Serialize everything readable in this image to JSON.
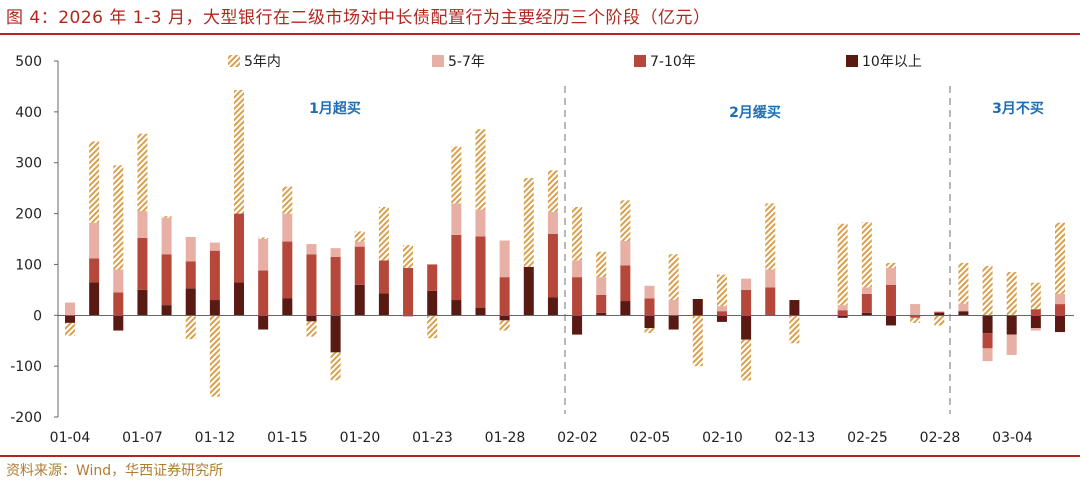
{
  "title": "图 4：2026 年 1-3 月，大型银行在二级市场对中长债配置行为主要经历三个阶段（亿元）",
  "source": "资料来源：Wind，华西证券研究所",
  "colors": {
    "title": "#b3261e",
    "source": "#b07c35",
    "series_5y": "#d9a04e",
    "series_5_7": "#e8afa5",
    "series_7_10": "#b5483a",
    "series_10plus": "#5a1a14",
    "phase_text": "#1f6eb3",
    "divider": "#b8b8b8",
    "axis": "#333333"
  },
  "chart_data": {
    "type": "bar",
    "stacked": true,
    "ylim": [
      -200,
      500
    ],
    "yticks": [
      "500",
      "400",
      "300",
      "200",
      "100",
      "0",
      "-100",
      "-200"
    ],
    "xlabels": [
      "01-04",
      "01-07",
      "01-12",
      "01-15",
      "01-20",
      "01-23",
      "01-28",
      "02-02",
      "02-05",
      "02-10",
      "02-13",
      "02-25",
      "02-28",
      "03-04"
    ],
    "series": [
      {
        "name": "5年内",
        "pattern": "hatch"
      },
      {
        "name": "5-7年",
        "pattern": "solid"
      },
      {
        "name": "7-10年",
        "pattern": "solid"
      },
      {
        "name": "10年以上",
        "pattern": "solid"
      }
    ],
    "bars": [
      {
        "s10": -15,
        "s7_10": 0,
        "s5_7": 25,
        "s5": -25
      },
      {
        "s10": 65,
        "s7_10": 47,
        "s5_7": 70,
        "s5": 160
      },
      {
        "s10": -30,
        "s7_10": 45,
        "s5_7": 45,
        "s5": 205
      },
      {
        "s10": 50,
        "s7_10": 102,
        "s5_7": 53,
        "s5": 152
      },
      {
        "s10": 20,
        "s7_10": 100,
        "s5_7": 72,
        "s5": 3
      },
      {
        "s10": 53,
        "s7_10": 53,
        "s5_7": 48,
        "s5": -47
      },
      {
        "s10": 30,
        "s7_10": 97,
        "s5_7": 16,
        "s5": -160
      },
      {
        "s10": 65,
        "s7_10": 135,
        "s5_7": 0,
        "s5": 243
      },
      {
        "s10": -28,
        "s7_10": 88,
        "s5_7": 62,
        "s5": 3
      },
      {
        "s10": 33,
        "s7_10": 112,
        "s5_7": 55,
        "s5": 53
      },
      {
        "s10": -12,
        "s7_10": 120,
        "s5_7": 20,
        "s5": -30
      },
      {
        "s10": -73,
        "s7_10": 115,
        "s5_7": 17,
        "s5": -55
      },
      {
        "s10": 60,
        "s7_10": 75,
        "s5_7": 10,
        "s5": 20
      },
      {
        "s10": 43,
        "s7_10": 65,
        "s5_7": 0,
        "s5": 105
      },
      {
        "s10": -2,
        "s7_10": 93,
        "s5_7": 0,
        "s5": 45
      },
      {
        "s10": 48,
        "s7_10": 52,
        "s5_7": 0,
        "s5": -45
      },
      {
        "s10": 30,
        "s7_10": 128,
        "s5_7": 62,
        "s5": 112
      },
      {
        "s10": 15,
        "s7_10": 140,
        "s5_7": 53,
        "s5": 158
      },
      {
        "s10": -10,
        "s7_10": 75,
        "s5_7": 72,
        "s5": -20
      },
      {
        "s10": 95,
        "s7_10": 0,
        "s5_7": 0,
        "s5": 175
      },
      {
        "s10": 35,
        "s7_10": 125,
        "s5_7": 43,
        "s5": 82
      },
      {
        "s10": -38,
        "s7_10": 75,
        "s5_7": 33,
        "s5": 105
      },
      {
        "s10": 5,
        "s7_10": 35,
        "s5_7": 35,
        "s5": 50
      },
      {
        "s10": 28,
        "s7_10": 70,
        "s5_7": 48,
        "s5": 80
      },
      {
        "s10": -25,
        "s7_10": 33,
        "s5_7": 25,
        "s5": -10
      },
      {
        "s10": -28,
        "s7_10": 0,
        "s5_7": 30,
        "s5": 90
      },
      {
        "s10": 32,
        "s7_10": 0,
        "s5_7": 0,
        "s5": -100
      },
      {
        "s10": -13,
        "s7_10": 8,
        "s5_7": 10,
        "s5": 62
      },
      {
        "s10": -48,
        "s7_10": 50,
        "s5_7": 22,
        "s5": -80
      },
      {
        "s10": 0,
        "s7_10": 55,
        "s5_7": 35,
        "s5": 130
      },
      {
        "s10": 30,
        "s7_10": 0,
        "s5_7": 0,
        "s5": -55
      },
      {
        "s10": 0,
        "s7_10": 0,
        "s5_7": 0,
        "s5": 0
      },
      {
        "s10": -5,
        "s7_10": 10,
        "s5_7": 10,
        "s5": 160
      },
      {
        "s10": 5,
        "s7_10": 37,
        "s5_7": 13,
        "s5": 128
      },
      {
        "s10": -20,
        "s7_10": 60,
        "s5_7": 33,
        "s5": 10
      },
      {
        "s10": 0,
        "s7_10": -5,
        "s5_7": 22,
        "s5": -10
      },
      {
        "s10": 5,
        "s7_10": 2,
        "s5_7": 0,
        "s5": -20
      },
      {
        "s10": 8,
        "s7_10": 0,
        "s5_7": 15,
        "s5": 80
      },
      {
        "s10": -35,
        "s7_10": -30,
        "s5_7": -25,
        "s5": 97
      },
      {
        "s10": -38,
        "s7_10": 0,
        "s5_7": -40,
        "s5": 85
      },
      {
        "s10": -25,
        "s7_10": 12,
        "s5_7": -5,
        "s5": 52
      },
      {
        "s10": -33,
        "s7_10": 22,
        "s5_7": 20,
        "s5": 140
      }
    ],
    "phases": [
      {
        "label": "1月超买"
      },
      {
        "label": "2月缓买"
      },
      {
        "label": "3月不买"
      }
    ]
  }
}
